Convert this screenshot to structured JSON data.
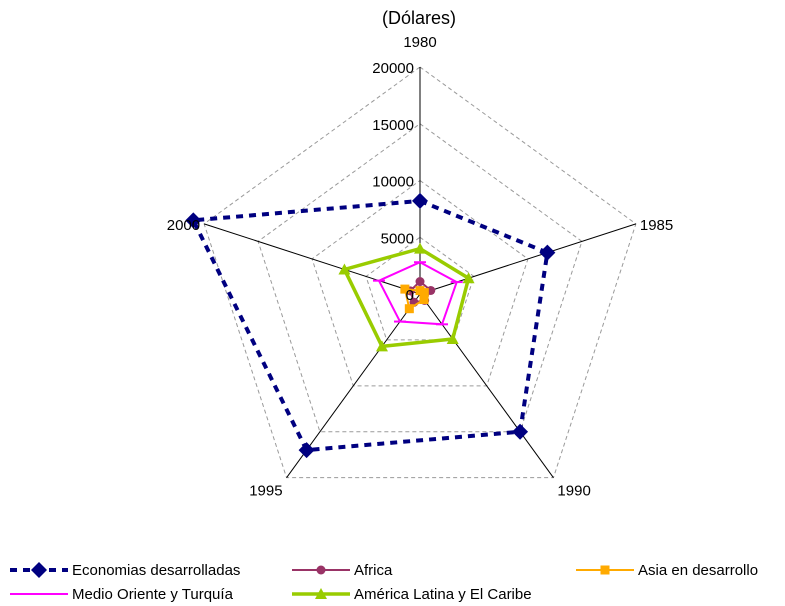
{
  "title_fragment": "",
  "subtitle": "(Dólares)",
  "chart_data": {
    "type": "radar",
    "title": "",
    "subtitle": "(Dólares)",
    "categories": [
      "1980",
      "1985",
      "1990",
      "1995",
      "2000"
    ],
    "radial_ticks": [
      "0",
      "5000",
      "10000",
      "15000",
      "20000"
    ],
    "rmax": 20000,
    "series": [
      {
        "name": "Economias desarrolladas",
        "values": [
          8200,
          11800,
          15000,
          17000,
          21000
        ],
        "color": "#000080",
        "marker": "diamond",
        "line": "dashed"
      },
      {
        "name": "Africa",
        "values": [
          1100,
          1000,
          700,
          900,
          900
        ],
        "color": "#993366",
        "marker": "circle",
        "line": "solid"
      },
      {
        "name": "Asia en desarrollo",
        "values": [
          300,
          400,
          600,
          1600,
          1400
        ],
        "color": "#FFAA00",
        "marker": "square",
        "line": "solid"
      },
      {
        "name": "Medio Oriente y Turquía",
        "values": [
          2800,
          3400,
          3300,
          3000,
          3800
        ],
        "color": "#FF00FF",
        "marker": "dash",
        "line": "solid"
      },
      {
        "name": "América Latina y El Caribe",
        "values": [
          4000,
          4500,
          4900,
          5700,
          7000
        ],
        "color": "#99CC00",
        "marker": "triangle",
        "line": "solid"
      }
    ]
  }
}
